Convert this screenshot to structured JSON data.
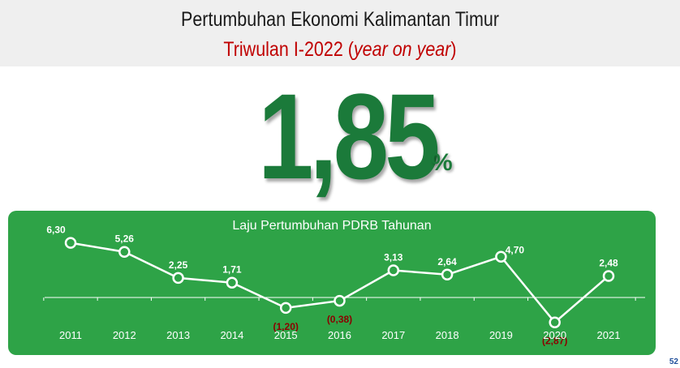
{
  "header": {
    "title": "Pertumbuhan Ekonomi Kalimantan Timur",
    "subtitle_main": "Triwulan I-2022 (",
    "subtitle_italic": "year on year",
    "subtitle_end": ")"
  },
  "headline": {
    "value": "1,85",
    "unit": "%"
  },
  "chart_data": {
    "type": "line",
    "title": "Laju Pertumbuhan PDRB Tahunan",
    "x": [
      "2011",
      "2012",
      "2013",
      "2014",
      "2015",
      "2016",
      "2017",
      "2018",
      "2019",
      "2020",
      "2021"
    ],
    "series": [
      {
        "values": [
          6.3,
          5.26,
          2.25,
          1.71,
          -1.2,
          -0.38,
          3.13,
          2.64,
          4.7,
          -2.87,
          2.48
        ],
        "labels": [
          "6,30",
          "5,26",
          "2,25",
          "1,71",
          "(1,20)",
          "(0,38)",
          "3,13",
          "2,64",
          "4,70",
          "(2,87)",
          "2,48"
        ]
      }
    ],
    "ylim": [
      -4,
      8
    ],
    "colors": {
      "positive_label": "#ffffff",
      "negative_label": "#8b0000",
      "line": "#ffffff",
      "panel": "#2ea347"
    }
  },
  "footer": {
    "page_number": "52"
  }
}
